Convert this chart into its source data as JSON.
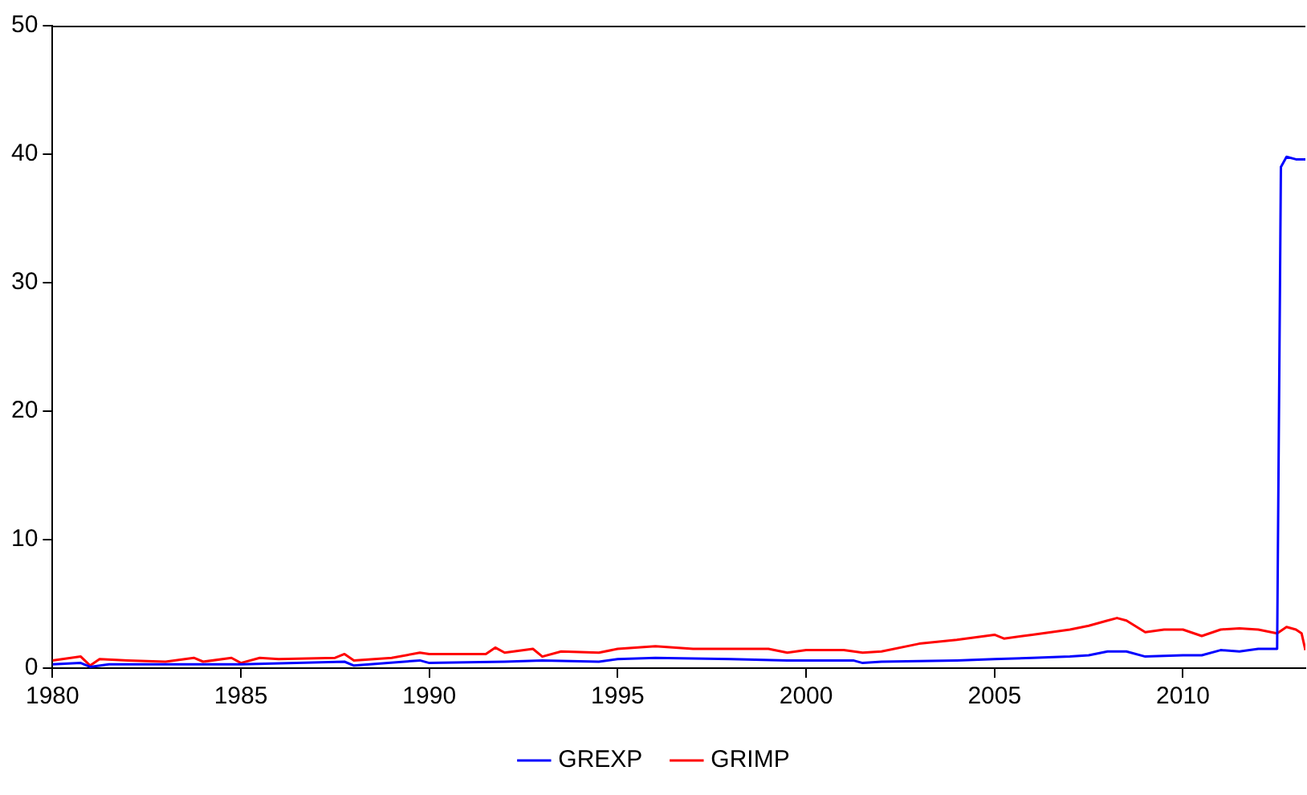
{
  "chart_data": {
    "type": "line",
    "xlim": [
      1980,
      2013.25
    ],
    "xticks": [
      1980,
      1985,
      1990,
      1995,
      2000,
      2005,
      2010
    ],
    "ylim": [
      0,
      50
    ],
    "yticks": [
      0,
      10,
      20,
      30,
      40,
      50
    ],
    "grid": false,
    "legend": "bottom",
    "marker": "none",
    "line_style": "solid",
    "series": [
      {
        "name": "GREXP",
        "color": "#0000ff",
        "x": [
          1980,
          1980.75,
          1981,
          1981.5,
          1982,
          1984,
          1985,
          1987.75,
          1988,
          1989.75,
          1990,
          1992,
          1993,
          1994.5,
          1995,
          1996,
          1998,
          1999.5,
          2000,
          2001.25,
          2001.5,
          2002,
          2004,
          2005,
          2006,
          2007,
          2007.5,
          2008,
          2008.5,
          2009,
          2010,
          2010.5,
          2011,
          2011.5,
          2012,
          2012.5,
          2012.6,
          2012.75,
          2013,
          2013.25
        ],
        "values": [
          0.3,
          0.4,
          0.1,
          0.3,
          0.3,
          0.3,
          0.3,
          0.5,
          0.2,
          0.6,
          0.4,
          0.5,
          0.6,
          0.5,
          0.7,
          0.8,
          0.7,
          0.6,
          0.6,
          0.6,
          0.4,
          0.5,
          0.6,
          0.7,
          0.8,
          0.9,
          1.0,
          1.3,
          1.3,
          0.9,
          1.0,
          1.0,
          1.4,
          1.3,
          1.5,
          1.5,
          39,
          39.8,
          39.6,
          39.6
        ]
      },
      {
        "name": "GRIMP",
        "color": "#ff0000",
        "x": [
          1980,
          1980.75,
          1981,
          1981.25,
          1982,
          1983,
          1983.75,
          1984,
          1984.75,
          1985,
          1985.5,
          1986,
          1987.5,
          1987.75,
          1988,
          1989,
          1989.75,
          1990,
          1991.5,
          1991.75,
          1992,
          1992.75,
          1993,
          1993.5,
          1994.5,
          1995,
          1996,
          1997,
          1998,
          1999,
          1999.5,
          2000,
          2001,
          2001.5,
          2002,
          2003,
          2004,
          2005,
          2005.25,
          2006,
          2007,
          2007.5,
          2008,
          2008.25,
          2008.5,
          2009,
          2009.5,
          2010,
          2010.5,
          2011,
          2011.5,
          2012,
          2012.5,
          2012.75,
          2013,
          2013.15,
          2013.25
        ],
        "values": [
          0.6,
          0.9,
          0.2,
          0.7,
          0.6,
          0.5,
          0.8,
          0.5,
          0.8,
          0.4,
          0.8,
          0.7,
          0.8,
          1.1,
          0.6,
          0.8,
          1.2,
          1.1,
          1.1,
          1.6,
          1.2,
          1.5,
          0.9,
          1.3,
          1.2,
          1.5,
          1.7,
          1.5,
          1.5,
          1.5,
          1.2,
          1.4,
          1.4,
          1.2,
          1.3,
          1.9,
          2.2,
          2.6,
          2.3,
          2.6,
          3.0,
          3.3,
          3.7,
          3.9,
          3.7,
          2.8,
          3.0,
          3.0,
          2.5,
          3.0,
          3.1,
          3.0,
          2.7,
          3.2,
          3.0,
          2.7,
          1.4
        ]
      }
    ]
  }
}
